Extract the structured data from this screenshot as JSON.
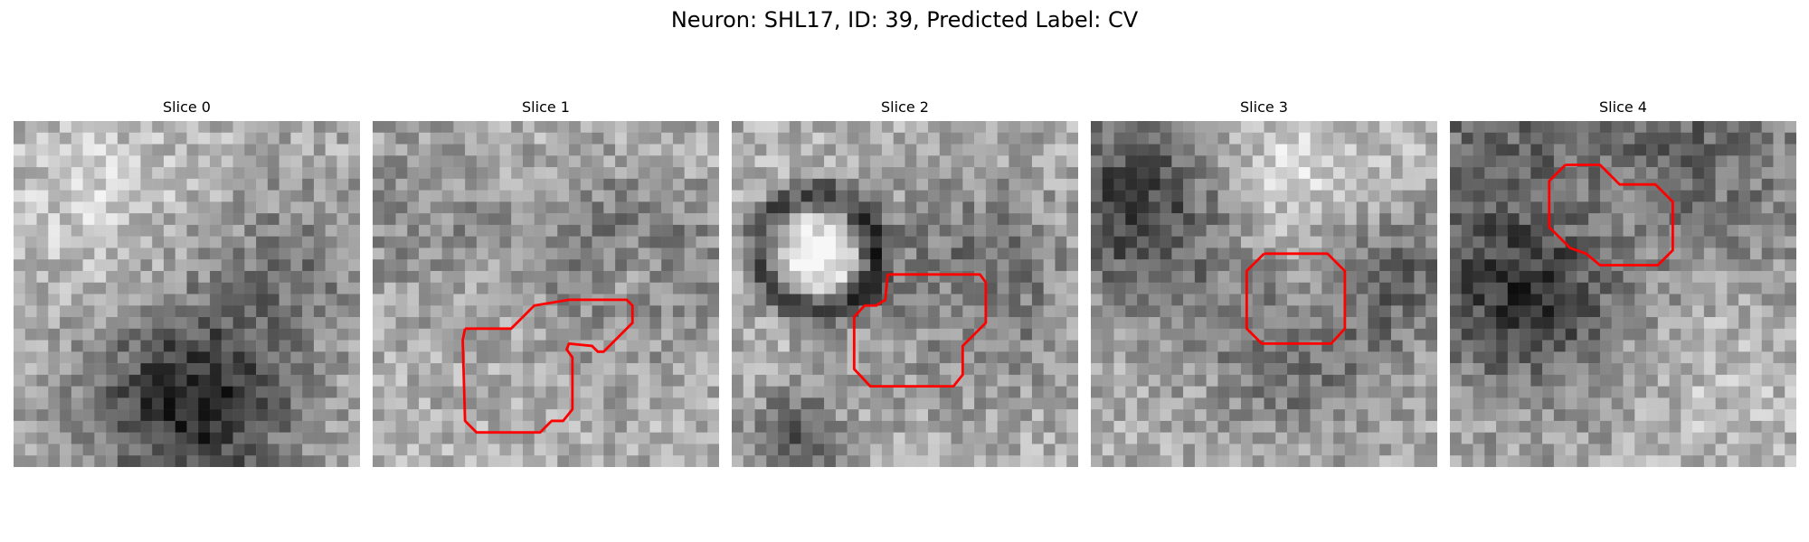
{
  "figure": {
    "title": "Neuron: SHL17, ID: 39, Predicted Label: CV"
  },
  "colors": {
    "outline": "#ff0000",
    "background": "#ffffff"
  },
  "panels": [
    {
      "title": "Slice 0",
      "has_outline": false
    },
    {
      "title": "Slice 1",
      "has_outline": true
    },
    {
      "title": "Slice 2",
      "has_outline": true
    },
    {
      "title": "Slice 3",
      "has_outline": true
    },
    {
      "title": "Slice 4",
      "has_outline": true
    }
  ]
}
